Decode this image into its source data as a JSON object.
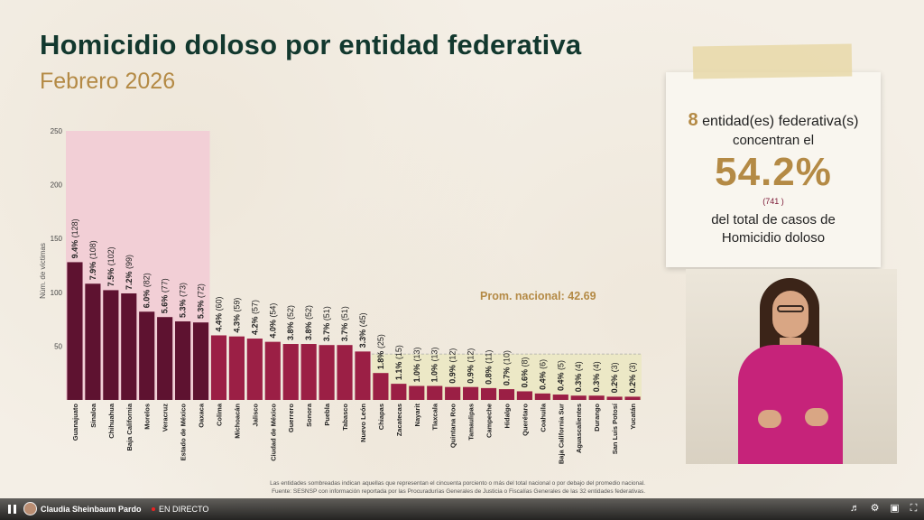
{
  "header": {
    "title": "Homicidio doloso por entidad federativa",
    "subtitle": "Febrero 2026"
  },
  "chart_data": {
    "type": "bar",
    "ylabel": "Núm. de víctimas",
    "ylim": [
      0,
      250
    ],
    "yticks": [
      50,
      100,
      150,
      200,
      250
    ],
    "highlight_count": 8,
    "average": 42.69,
    "average_label": "Prom. nacional: 42.69",
    "categories": [
      "Guanajuato",
      "Sinaloa",
      "Chihuahua",
      "Baja California",
      "Morelos",
      "Veracruz",
      "Estado de México",
      "Oaxaca",
      "Colima",
      "Michoacán",
      "Jalisco",
      "Ciudad de México",
      "Guerrero",
      "Sonora",
      "Puebla",
      "Tabasco",
      "Nuevo León",
      "Chiapas",
      "Zacatecas",
      "Nayarit",
      "Tlaxcala",
      "Quintana Roo",
      "Tamaulipas",
      "Campeche",
      "Hidalgo",
      "Querétaro",
      "Coahuila",
      "Baja California Sur",
      "Aguascalientes",
      "Durango",
      "San Luis Potosí",
      "Yucatán"
    ],
    "values": [
      128,
      108,
      102,
      99,
      82,
      77,
      73,
      72,
      60,
      59,
      57,
      54,
      52,
      52,
      51,
      51,
      45,
      25,
      15,
      13,
      13,
      12,
      12,
      11,
      10,
      8,
      6,
      5,
      4,
      4,
      3,
      3
    ],
    "pct_labels": [
      "9.4%",
      "7.9%",
      "7.5%",
      "7.2%",
      "6.0%",
      "5.6%",
      "5.3%",
      "5.3%",
      "4.4%",
      "4.3%",
      "4.2%",
      "4.0%",
      "3.8%",
      "3.8%",
      "3.7%",
      "3.7%",
      "3.3%",
      "1.8%",
      "1.1%",
      "1.0%",
      "1.0%",
      "0.9%",
      "0.9%",
      "0.8%",
      "0.7%",
      "0.6%",
      "0.4%",
      "0.4%",
      "0.3%",
      "0.3%",
      "0.2%",
      "0.2%"
    ],
    "count_labels": [
      "(128)",
      "(108)",
      "(102)",
      "(99)",
      "(82)",
      "(77)",
      "(73)",
      "(72)",
      "(60)",
      "(59)",
      "(57)",
      "(54)",
      "(52)",
      "(52)",
      "(51)",
      "(51)",
      "(45)",
      "(25)",
      "(15)",
      "(13)",
      "(13)",
      "(12)",
      "(12)",
      "(11)",
      "(10)",
      "(8)",
      "(6)",
      "(5)",
      "(4)",
      "(4)",
      "(3)",
      "(3)"
    ],
    "colors": {
      "highlight_bar": "#5e1230",
      "normal_bar": "#9b1f45",
      "highlight_bg": "#f2cfd6",
      "below_avg_bg": "#ece8c6",
      "average_text": "#b48a45"
    }
  },
  "footnote": {
    "line1": "Las entidades sombreadas indican aquellas que representan el cincuenta porciento o más del total nacional o por debajo del promedio nacional.",
    "line2": "Fuente: SESNSP con información reportada por las Procuradurías Generales de Justicia o Fiscalías Generales de las 32 entidades federativas."
  },
  "card": {
    "count": "8",
    "line1_rest": " entidad(es) federativa(s)",
    "line2": "concentran el",
    "percent": "54.2%",
    "cases": "(741 )",
    "line3a": "del total de casos de",
    "line3b": "Homicidio doloso"
  },
  "player": {
    "channel": "Claudia Sheinbaum Pardo",
    "live": "EN DIRECTO"
  }
}
